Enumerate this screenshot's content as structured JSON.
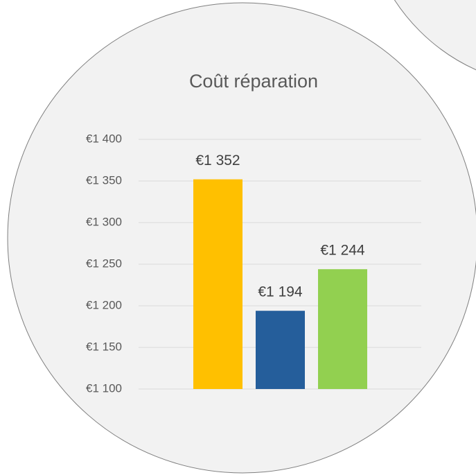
{
  "chart_data": {
    "type": "bar",
    "title": "Coût réparation",
    "categories": [
      null,
      null,
      null
    ],
    "values": [
      1352,
      1194,
      1244
    ],
    "value_labels": [
      "€1 352",
      "€1 194",
      "€1 244"
    ],
    "colors": [
      "#ffc000",
      "#255e9b",
      "#92d050"
    ],
    "ylim": [
      1100,
      1400
    ],
    "yticks": [
      {
        "value": 1100,
        "label": "€1 100"
      },
      {
        "value": 1150,
        "label": "€1 150"
      },
      {
        "value": 1200,
        "label": "€1 200"
      },
      {
        "value": 1250,
        "label": "€1 250"
      },
      {
        "value": 1300,
        "label": "€1 300"
      },
      {
        "value": 1350,
        "label": "€1 350"
      },
      {
        "value": 1400,
        "label": "€1 400"
      }
    ],
    "grid": true
  }
}
